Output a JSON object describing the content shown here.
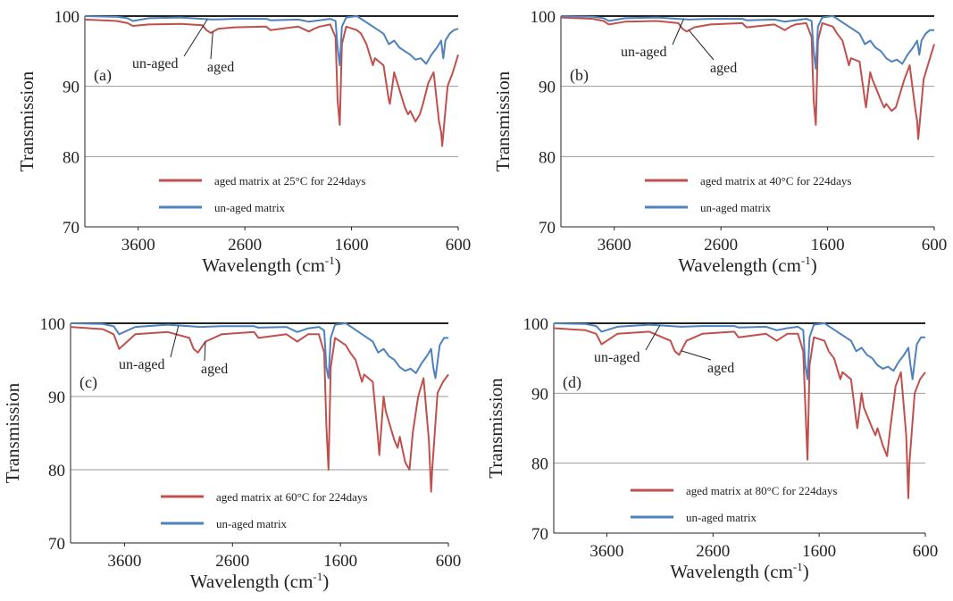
{
  "chart_data": [
    {
      "type": "line",
      "panel_label": "(a)",
      "xlabel": "Wavelength (cm",
      "xlabel_sup": "-1",
      "xlabel_end": ")",
      "ylabel": "Transmission",
      "xlim": [
        4100,
        600
      ],
      "ylim": [
        70,
        100
      ],
      "xticks": [
        "3600",
        "2600",
        "1600",
        "600"
      ],
      "yticks": [
        "70",
        "80",
        "90",
        "100"
      ],
      "annotations": [
        "un-aged",
        "aged"
      ],
      "legend": [
        "aged matrix at 25°C for 224days",
        "un-aged matrix"
      ],
      "series": [
        {
          "name": "aged matrix at 25°C for 224days",
          "color": "#c0504d",
          "x": [
            4100,
            3800,
            3700,
            3650,
            3500,
            3200,
            3000,
            2960,
            2920,
            2850,
            2700,
            2400,
            2360,
            2100,
            2000,
            1950,
            1900,
            1800,
            1750,
            1730,
            1710,
            1690,
            1650,
            1550,
            1510,
            1460,
            1400,
            1380,
            1300,
            1250,
            1240,
            1200,
            1180,
            1100,
            1070,
            1050,
            1000,
            960,
            930,
            880,
            830,
            780,
            760,
            750,
            700,
            650,
            600
          ],
          "y": [
            99.5,
            99.3,
            99.0,
            98.6,
            98.8,
            98.9,
            98.7,
            98.0,
            97.6,
            98.2,
            98.4,
            98.5,
            98.0,
            98.5,
            97.8,
            98.2,
            98.5,
            98.8,
            97.0,
            88.0,
            84.5,
            96.0,
            98.5,
            98.0,
            97.5,
            96.0,
            93.0,
            94.0,
            93.0,
            88.0,
            87.5,
            92.0,
            91.0,
            87.0,
            86.0,
            86.5,
            85.0,
            86.0,
            87.5,
            90.5,
            92.0,
            85.0,
            83.5,
            81.5,
            90.0,
            92.0,
            94.5
          ]
        },
        {
          "name": "un-aged matrix",
          "color": "#4f81bd",
          "x": [
            4100,
            3800,
            3700,
            3650,
            3500,
            3200,
            3000,
            2900,
            2700,
            2400,
            2360,
            2100,
            2000,
            1900,
            1800,
            1750,
            1730,
            1710,
            1690,
            1650,
            1550,
            1500,
            1400,
            1300,
            1250,
            1200,
            1150,
            1100,
            1050,
            1000,
            950,
            900,
            850,
            800,
            760,
            740,
            720,
            680,
            640,
            600
          ],
          "y": [
            100.0,
            99.9,
            99.7,
            99.3,
            99.7,
            99.8,
            99.6,
            99.5,
            99.6,
            99.6,
            99.4,
            99.5,
            99.2,
            99.4,
            99.6,
            99.3,
            95.5,
            93.0,
            98.5,
            99.8,
            100.0,
            99.5,
            98.5,
            97.5,
            96.0,
            96.5,
            95.5,
            95.0,
            94.5,
            93.8,
            94.0,
            93.2,
            94.5,
            95.5,
            96.5,
            94.0,
            96.5,
            97.5,
            98.0,
            98.2
          ]
        }
      ]
    },
    {
      "type": "line",
      "panel_label": "(b)",
      "xlabel": "Wavelength (cm",
      "xlabel_sup": "-1",
      "xlabel_end": ")",
      "ylabel": "Transmission",
      "xlim": [
        4100,
        600
      ],
      "ylim": [
        70,
        100
      ],
      "xticks": [
        "3600",
        "2600",
        "1600",
        "600"
      ],
      "yticks": [
        "70",
        "80",
        "90",
        "100"
      ],
      "annotations": [
        "un-aged",
        "aged"
      ],
      "legend": [
        "aged matrix at 40°C for 224days",
        "un-aged matrix"
      ],
      "series": [
        {
          "name": "aged matrix at 40°C for 224days",
          "color": "#c0504d",
          "x": [
            4100,
            3800,
            3700,
            3650,
            3500,
            3200,
            3000,
            2960,
            2920,
            2850,
            2700,
            2400,
            2360,
            2100,
            2000,
            1950,
            1900,
            1800,
            1750,
            1730,
            1710,
            1690,
            1650,
            1550,
            1510,
            1460,
            1400,
            1380,
            1300,
            1250,
            1240,
            1200,
            1180,
            1100,
            1070,
            1050,
            1000,
            960,
            930,
            880,
            830,
            780,
            760,
            750,
            700,
            650,
            600
          ],
          "y": [
            99.8,
            99.6,
            99.3,
            98.8,
            99.2,
            99.3,
            99.0,
            98.2,
            97.8,
            98.4,
            98.8,
            99.0,
            98.4,
            98.8,
            98.0,
            98.5,
            98.8,
            99.0,
            97.0,
            88.0,
            84.5,
            96.5,
            99.0,
            98.5,
            97.5,
            96.5,
            93.0,
            94.0,
            93.5,
            88.0,
            87.0,
            92.0,
            91.0,
            88.0,
            87.0,
            87.5,
            86.5,
            87.0,
            88.5,
            91.0,
            93.0,
            87.0,
            85.0,
            82.5,
            91.0,
            93.5,
            96.0
          ]
        },
        {
          "name": "un-aged matrix",
          "color": "#4f81bd",
          "x": [
            4100,
            3800,
            3700,
            3650,
            3500,
            3200,
            3000,
            2900,
            2700,
            2400,
            2360,
            2100,
            2000,
            1900,
            1800,
            1750,
            1730,
            1710,
            1690,
            1650,
            1550,
            1500,
            1400,
            1300,
            1250,
            1200,
            1150,
            1100,
            1050,
            1000,
            950,
            900,
            850,
            800,
            760,
            740,
            720,
            680,
            640,
            600
          ],
          "y": [
            100.0,
            99.9,
            99.7,
            99.3,
            99.7,
            99.8,
            99.6,
            99.5,
            99.6,
            99.6,
            99.4,
            99.5,
            99.2,
            99.4,
            99.6,
            99.3,
            95.0,
            92.5,
            98.5,
            99.8,
            100.0,
            99.5,
            98.5,
            97.5,
            96.0,
            96.5,
            95.5,
            95.0,
            94.0,
            93.5,
            93.8,
            93.2,
            94.5,
            95.5,
            96.5,
            94.5,
            96.5,
            97.5,
            98.0,
            98.0
          ]
        }
      ]
    },
    {
      "type": "line",
      "panel_label": "(c)",
      "xlabel": "Wavelength (cm",
      "xlabel_sup": "-1",
      "xlabel_end": ")",
      "ylabel": "Transmission",
      "xlim": [
        4100,
        600
      ],
      "ylim": [
        70,
        100
      ],
      "xticks": [
        "3600",
        "2600",
        "1600",
        "600"
      ],
      "yticks": [
        "70",
        "80",
        "90",
        "100"
      ],
      "annotations": [
        "un-aged",
        "aged"
      ],
      "legend": [
        "aged matrix at 60°C for 224days",
        "un-aged matrix"
      ],
      "series": [
        {
          "name": "aged matrix at 60°C for 224days",
          "color": "#c0504d",
          "x": [
            4100,
            3800,
            3700,
            3650,
            3500,
            3200,
            3000,
            2960,
            2920,
            2850,
            2700,
            2400,
            2360,
            2100,
            2000,
            1950,
            1900,
            1800,
            1750,
            1730,
            1710,
            1690,
            1650,
            1550,
            1510,
            1460,
            1400,
            1380,
            1300,
            1250,
            1240,
            1200,
            1180,
            1100,
            1070,
            1050,
            1000,
            960,
            930,
            880,
            830,
            780,
            760,
            750,
            700,
            650,
            600
          ],
          "y": [
            99.5,
            99.2,
            98.5,
            96.5,
            98.5,
            98.8,
            98.0,
            96.5,
            96.0,
            97.5,
            98.5,
            98.8,
            98.0,
            98.5,
            97.5,
            98.0,
            98.5,
            98.5,
            96.0,
            86.0,
            80.0,
            94.0,
            98.0,
            97.0,
            96.0,
            95.0,
            92.0,
            93.0,
            92.0,
            84.0,
            82.0,
            90.0,
            88.0,
            84.0,
            83.0,
            84.5,
            81.0,
            80.0,
            85.0,
            90.0,
            92.5,
            84.0,
            77.0,
            80.0,
            90.5,
            92.0,
            93.0
          ]
        },
        {
          "name": "un-aged matrix",
          "color": "#4f81bd",
          "x": [
            4100,
            3800,
            3700,
            3650,
            3500,
            3200,
            3000,
            2900,
            2700,
            2400,
            2360,
            2100,
            2000,
            1900,
            1800,
            1750,
            1730,
            1710,
            1690,
            1650,
            1550,
            1500,
            1400,
            1300,
            1250,
            1200,
            1150,
            1100,
            1050,
            1000,
            950,
            900,
            850,
            800,
            760,
            740,
            720,
            680,
            640,
            600
          ],
          "y": [
            100.0,
            99.9,
            99.6,
            98.5,
            99.5,
            99.8,
            99.6,
            99.5,
            99.6,
            99.6,
            99.4,
            99.5,
            98.8,
            99.3,
            99.5,
            99.0,
            94.0,
            92.5,
            98.0,
            99.8,
            100.0,
            99.5,
            98.5,
            97.5,
            96.0,
            96.5,
            95.5,
            95.0,
            94.0,
            93.5,
            93.8,
            93.2,
            94.5,
            95.5,
            96.5,
            94.0,
            92.5,
            97.0,
            98.0,
            98.0
          ]
        }
      ]
    },
    {
      "type": "line",
      "panel_label": "(d)",
      "xlabel": "Wavelength (cm",
      "xlabel_sup": "-1",
      "xlabel_end": ")",
      "ylabel": "Transmission",
      "xlim": [
        4100,
        600
      ],
      "ylim": [
        70,
        100
      ],
      "xticks": [
        "3600",
        "2600",
        "1600",
        "600"
      ],
      "yticks": [
        "70",
        "80",
        "90",
        "100"
      ],
      "annotations": [
        "un-aged",
        "aged"
      ],
      "legend": [
        "aged matrix at 80°C for 224days",
        "un-aged matrix"
      ],
      "series": [
        {
          "name": "aged matrix at 80°C for 224days",
          "color": "#c0504d",
          "x": [
            4100,
            3800,
            3700,
            3650,
            3500,
            3200,
            3000,
            2960,
            2920,
            2850,
            2700,
            2400,
            2360,
            2100,
            2000,
            1950,
            1900,
            1800,
            1750,
            1730,
            1710,
            1690,
            1650,
            1550,
            1510,
            1460,
            1400,
            1380,
            1300,
            1250,
            1240,
            1200,
            1180,
            1100,
            1070,
            1050,
            1000,
            960,
            930,
            880,
            830,
            780,
            760,
            750,
            700,
            650,
            600
          ],
          "y": [
            99.3,
            99.0,
            98.5,
            97.0,
            98.5,
            98.8,
            97.5,
            96.0,
            95.5,
            97.5,
            98.5,
            98.8,
            98.0,
            98.5,
            97.5,
            98.0,
            98.5,
            98.5,
            96.0,
            88.0,
            80.5,
            94.0,
            98.0,
            97.5,
            96.0,
            95.0,
            92.0,
            93.0,
            92.0,
            86.0,
            85.0,
            90.0,
            88.0,
            85.0,
            84.0,
            85.0,
            82.5,
            81.0,
            85.0,
            91.0,
            93.0,
            84.0,
            75.0,
            80.0,
            90.0,
            92.0,
            93.0
          ]
        },
        {
          "name": "un-aged matrix",
          "color": "#4f81bd",
          "x": [
            4100,
            3800,
            3700,
            3650,
            3500,
            3200,
            3000,
            2900,
            2700,
            2400,
            2360,
            2100,
            2000,
            1900,
            1800,
            1750,
            1730,
            1710,
            1690,
            1650,
            1550,
            1500,
            1400,
            1300,
            1250,
            1200,
            1150,
            1100,
            1050,
            1000,
            950,
            900,
            850,
            800,
            760,
            740,
            720,
            680,
            640,
            600
          ],
          "y": [
            100.0,
            99.9,
            99.6,
            98.8,
            99.5,
            99.8,
            99.6,
            99.5,
            99.6,
            99.6,
            99.4,
            99.5,
            99.0,
            99.3,
            99.5,
            99.0,
            94.0,
            92.0,
            98.0,
            99.8,
            100.0,
            99.5,
            98.5,
            97.5,
            96.0,
            96.5,
            95.5,
            95.0,
            94.0,
            93.5,
            93.8,
            93.2,
            94.5,
            95.5,
            96.5,
            94.0,
            92.0,
            97.0,
            98.0,
            98.0
          ]
        }
      ]
    }
  ]
}
